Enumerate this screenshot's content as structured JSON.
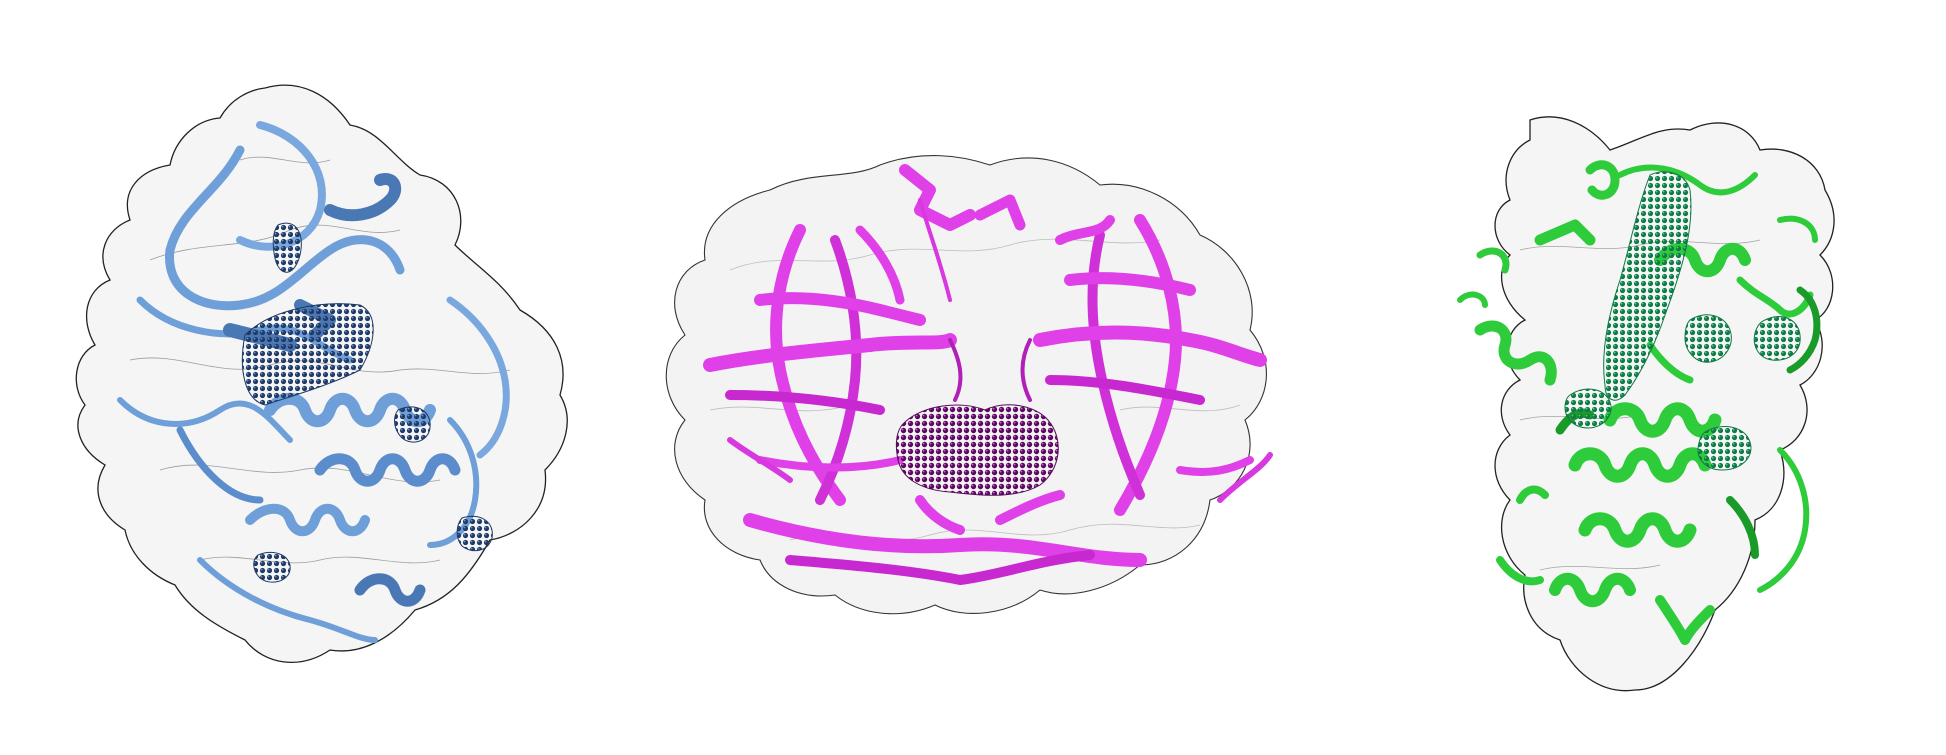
{
  "figure": {
    "panels": [
      {
        "name": "blue-protein",
        "ribbon_color": "#6f9fd8",
        "ribbon_dark": "#4a78b5",
        "cavity_color": "#1f3a66"
      },
      {
        "name": "magenta-protein",
        "ribbon_color": "#e040e8",
        "ribbon_dark": "#b020b8",
        "cavity_color": "#5a0a5e"
      },
      {
        "name": "green-protein",
        "ribbon_color": "#2ecc3a",
        "ribbon_dark": "#1a9a28",
        "cavity_color": "#0f7a45"
      }
    ],
    "surface_outline_color": "#222222",
    "surface_fill": "#f4f4f4"
  }
}
